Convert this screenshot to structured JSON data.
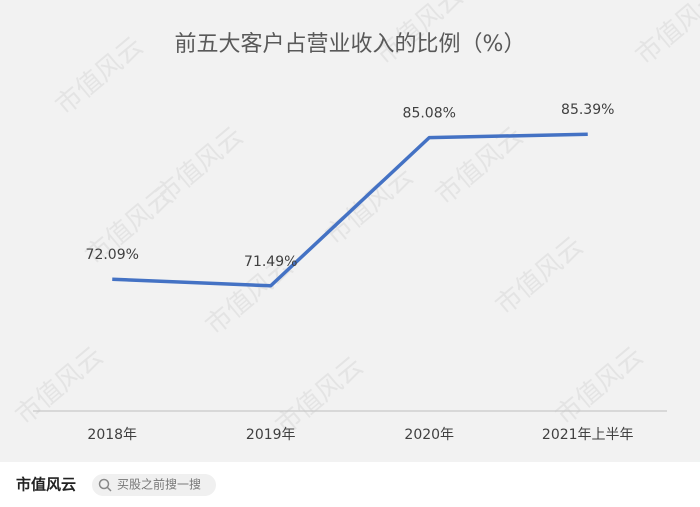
{
  "chart_data": {
    "type": "line",
    "title": "前五大客户占营业收入的比例（%）",
    "categories": [
      "2018年",
      "2019年",
      "2020年",
      "2021年上半年"
    ],
    "values": [
      72.09,
      71.49,
      85.08,
      85.39
    ],
    "value_labels": [
      "72.09%",
      "71.49%",
      "85.08%",
      "85.39%"
    ],
    "color": "#4472c4",
    "ylim": [
      60,
      90
    ]
  },
  "watermark": "市值风云",
  "footer": {
    "brand": "市值风云",
    "search": "买股之前搜一搜"
  }
}
